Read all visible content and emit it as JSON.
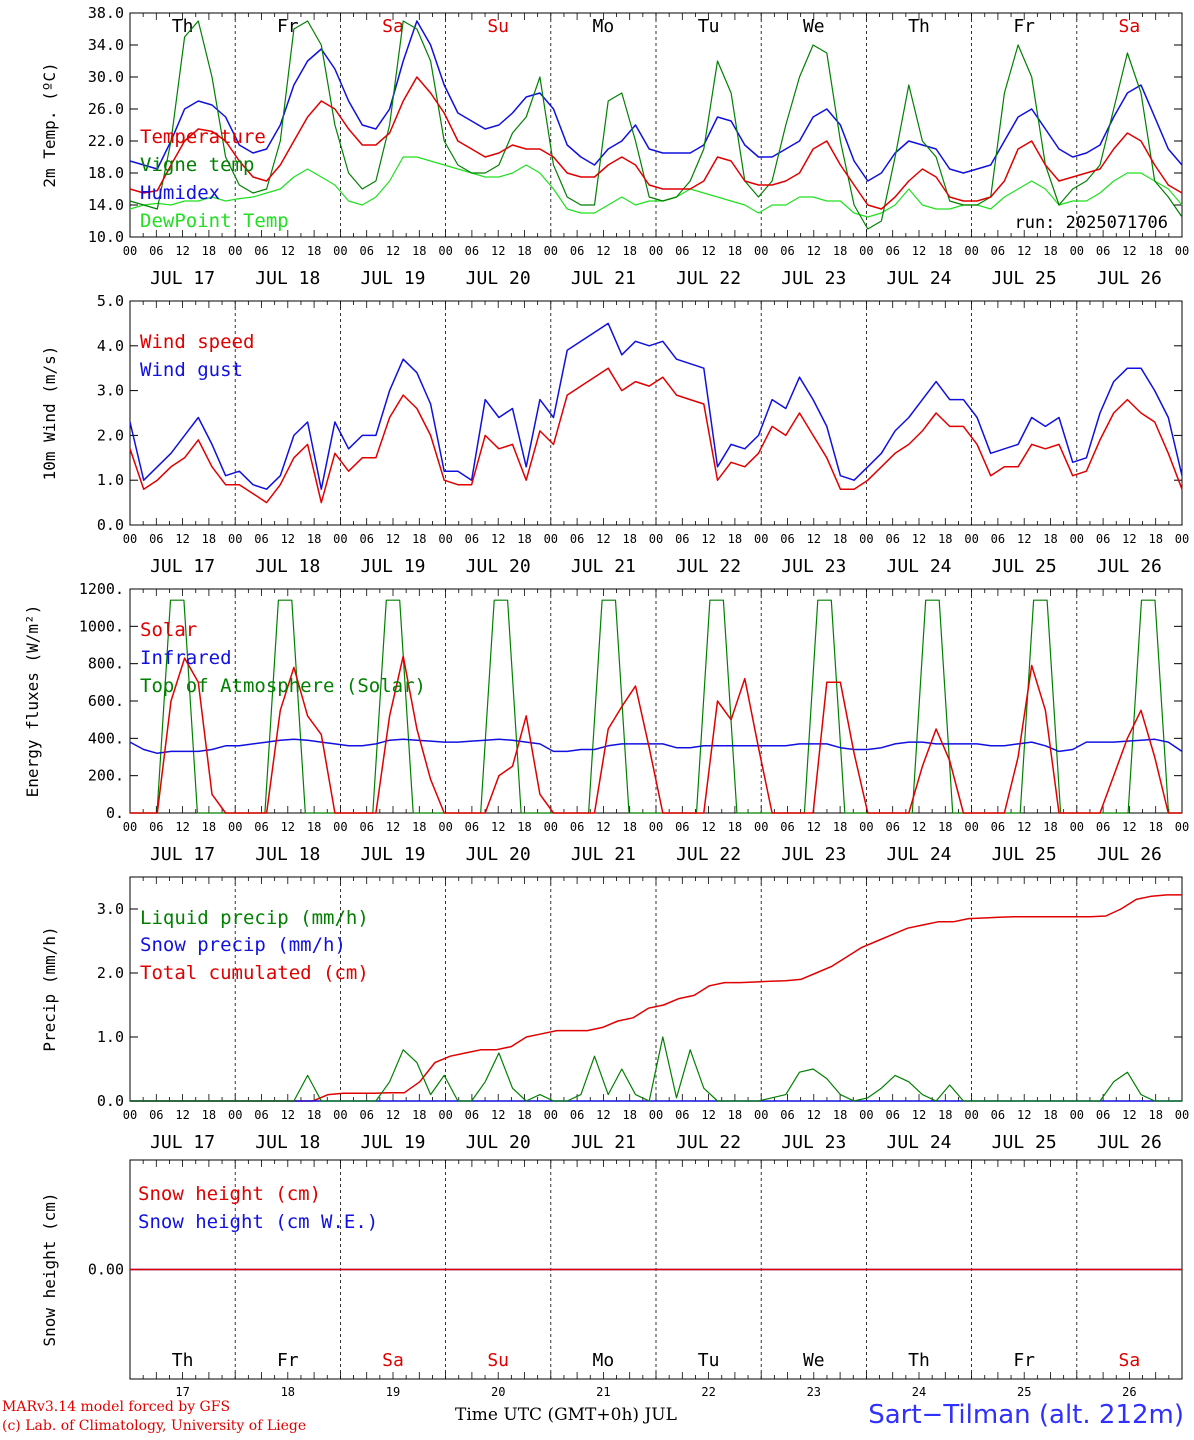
{
  "run_label": "run: 2025071706",
  "days": [
    "Th",
    "Fr",
    "Sa",
    "Su",
    "Mo",
    "Tu",
    "We",
    "Th",
    "Fr",
    "Sa"
  ],
  "weekend_flags": [
    false,
    false,
    true,
    true,
    false,
    false,
    false,
    false,
    false,
    true
  ],
  "date_labels": [
    "JUL 17",
    "JUL 18",
    "JUL 19",
    "JUL 20",
    "JUL 21",
    "JUL 22",
    "JUL 23",
    "JUL 24",
    "JUL 25",
    "JUL 26"
  ],
  "day_numbers": [
    "17",
    "18",
    "19",
    "20",
    "21",
    "22",
    "23",
    "24",
    "25",
    "26"
  ],
  "hour_ticks": [
    "00",
    "06",
    "12",
    "18"
  ],
  "footer": {
    "model_line": "MARv3.14 model forced by GFS",
    "credit_line": "(c) Lab. of Climatology, University of Liege",
    "xaxis_label": "Time UTC (GMT+0h) JUL",
    "station": "Sart−Tilman (alt. 212m)"
  },
  "colors": {
    "red": "#e00000",
    "green": "#008000",
    "blue": "#1010e0",
    "lightgreen": "#20e020",
    "grid": "#000000"
  },
  "chart_data": [
    {
      "type": "line",
      "ylabel": "2m Temp. (ºC)",
      "yticks": [
        "10.0",
        "14.0",
        "18.0",
        "22.0",
        "26.0",
        "30.0",
        "34.0",
        "38.0"
      ],
      "ylim": [
        10,
        38
      ],
      "x_hours": 240,
      "series": [
        {
          "name": "Temperature",
          "color": "red",
          "values": [
            16,
            15.5,
            15.8,
            19,
            22,
            23.5,
            23.2,
            22,
            19.5,
            17.5,
            17,
            19,
            22,
            25,
            27,
            26,
            23.5,
            21.5,
            21.5,
            23,
            27,
            30,
            28,
            25.5,
            22,
            21,
            20,
            20.5,
            21.5,
            21,
            21,
            20,
            18,
            17.5,
            17.5,
            19,
            20,
            19,
            16.5,
            16,
            16,
            16,
            17,
            20,
            19.5,
            17,
            16.5,
            16.5,
            17,
            18,
            21,
            22,
            19,
            16.5,
            14,
            13.5,
            15,
            17,
            18.5,
            17.5,
            15,
            14.5,
            14.5,
            15,
            17,
            21,
            22,
            19,
            17,
            17.5,
            18,
            18.5,
            21,
            23,
            22,
            19,
            16.5,
            15.5
          ]
        },
        {
          "name": "Vigne temp",
          "color": "green",
          "values": [
            14.5,
            14,
            13.5,
            22,
            35,
            37,
            30,
            20,
            16.5,
            15.5,
            16,
            22,
            36,
            37,
            34,
            24,
            18,
            16,
            17,
            24,
            37,
            36,
            32,
            22,
            19,
            18,
            18,
            19,
            23,
            25,
            30,
            19,
            15,
            14,
            14,
            27,
            28,
            22,
            15,
            14.5,
            15,
            17,
            21,
            32,
            28,
            17,
            15,
            17,
            24,
            30,
            34,
            33,
            22,
            14,
            11,
            12,
            20,
            29,
            22,
            20,
            14.5,
            14,
            14,
            15,
            28,
            34,
            30,
            19,
            14,
            16,
            17,
            19,
            26,
            33,
            28,
            17,
            15,
            12.5
          ]
        },
        {
          "name": "Humidex",
          "color": "blue",
          "values": [
            19.5,
            19,
            18.5,
            22,
            26,
            27,
            26.5,
            25,
            21.5,
            20.5,
            21,
            24,
            29,
            32,
            33.5,
            31,
            27,
            24,
            23.5,
            26,
            32,
            37,
            34,
            29,
            25.5,
            24.5,
            23.5,
            24,
            25.5,
            27.5,
            28,
            26,
            21.5,
            20,
            19,
            21,
            22,
            24,
            21,
            20.5,
            20.5,
            20.5,
            21.5,
            25,
            24.5,
            21.5,
            20,
            20,
            21,
            22,
            25,
            26,
            24,
            19.5,
            17,
            18,
            20.5,
            22,
            21.5,
            21,
            18.5,
            18,
            18.5,
            19,
            22,
            25,
            26,
            23.5,
            21,
            20,
            20.5,
            21.5,
            25,
            28,
            29,
            25,
            21,
            19
          ]
        },
        {
          "name": "DewPoint Temp",
          "color": "lightgreen",
          "values": [
            13.5,
            14,
            14.2,
            14,
            14.5,
            14.5,
            15,
            14.5,
            14.8,
            15,
            15.5,
            16,
            17.5,
            18.5,
            17.5,
            16.5,
            14.5,
            14,
            15,
            17,
            20,
            20,
            19.5,
            19,
            18.5,
            18,
            17.5,
            17.5,
            18,
            19,
            18,
            16,
            13.5,
            13,
            13,
            14,
            15,
            14,
            14.5,
            14.5,
            15,
            16,
            15.5,
            15,
            14.5,
            14,
            13,
            14,
            14,
            15,
            15,
            14.5,
            14.5,
            13,
            12.5,
            13,
            14,
            16,
            14,
            13.5,
            13.5,
            14,
            14,
            13.5,
            15,
            16,
            17,
            16,
            14,
            14.5,
            14.5,
            15.5,
            17,
            18,
            18,
            17,
            16,
            14
          ]
        }
      ]
    },
    {
      "type": "line",
      "ylabel": "10m Wind (m/s)",
      "yticks": [
        "0.0",
        "1.0",
        "2.0",
        "3.0",
        "4.0",
        "5.0"
      ],
      "ylim": [
        0,
        5
      ],
      "x_hours": 240,
      "series": [
        {
          "name": "Wind speed",
          "color": "red",
          "values": [
            1.7,
            0.8,
            1.0,
            1.3,
            1.5,
            1.9,
            1.3,
            0.9,
            0.9,
            0.7,
            0.5,
            0.9,
            1.5,
            1.8,
            0.5,
            1.6,
            1.2,
            1.5,
            1.5,
            2.4,
            2.9,
            2.6,
            2.0,
            1.0,
            0.9,
            0.9,
            2.0,
            1.7,
            1.8,
            1.0,
            2.1,
            1.8,
            2.9,
            3.1,
            3.3,
            3.5,
            3.0,
            3.2,
            3.1,
            3.3,
            2.9,
            2.8,
            2.7,
            1.0,
            1.4,
            1.3,
            1.6,
            2.2,
            2.0,
            2.5,
            2.0,
            1.5,
            0.8,
            0.8,
            1.0,
            1.3,
            1.6,
            1.8,
            2.1,
            2.5,
            2.2,
            2.2,
            1.8,
            1.1,
            1.3,
            1.3,
            1.8,
            1.7,
            1.8,
            1.1,
            1.2,
            1.9,
            2.5,
            2.8,
            2.5,
            2.3,
            1.6,
            0.8
          ]
        },
        {
          "name": "Wind gust",
          "color": "blue",
          "values": [
            2.3,
            1.0,
            1.3,
            1.6,
            2.0,
            2.4,
            1.8,
            1.1,
            1.2,
            0.9,
            0.8,
            1.1,
            2.0,
            2.3,
            0.8,
            2.3,
            1.7,
            2.0,
            2.0,
            3.0,
            3.7,
            3.4,
            2.7,
            1.2,
            1.2,
            1.0,
            2.8,
            2.4,
            2.6,
            1.3,
            2.8,
            2.4,
            3.9,
            4.1,
            4.3,
            4.5,
            3.8,
            4.1,
            4.0,
            4.1,
            3.7,
            3.6,
            3.5,
            1.3,
            1.8,
            1.7,
            2.0,
            2.8,
            2.6,
            3.3,
            2.8,
            2.2,
            1.1,
            1.0,
            1.3,
            1.6,
            2.1,
            2.4,
            2.8,
            3.2,
            2.8,
            2.8,
            2.4,
            1.6,
            1.7,
            1.8,
            2.4,
            2.2,
            2.4,
            1.4,
            1.5,
            2.5,
            3.2,
            3.5,
            3.5,
            3.0,
            2.4,
            1.1
          ]
        }
      ]
    },
    {
      "type": "line",
      "ylabel": "Energy fluxes (W/m²)",
      "yticks": [
        "0.",
        "200.",
        "400.",
        "600.",
        "800.",
        "1000.",
        "1200."
      ],
      "ylim": [
        0,
        1200
      ],
      "x_hours": 240,
      "series": [
        {
          "name": "Solar",
          "color": "red",
          "values": [
            0,
            0,
            0,
            600,
            830,
            700,
            100,
            0,
            0,
            0,
            0,
            550,
            780,
            520,
            420,
            0,
            0,
            0,
            0,
            520,
            840,
            450,
            180,
            0,
            0,
            0,
            0,
            200,
            250,
            520,
            100,
            0,
            0,
            0,
            0,
            450,
            570,
            680,
            350,
            0,
            0,
            0,
            0,
            600,
            500,
            720,
            350,
            0,
            0,
            0,
            0,
            700,
            700,
            320,
            0,
            0,
            0,
            0,
            250,
            450,
            280,
            0,
            0,
            0,
            0,
            300,
            790,
            550,
            0,
            0,
            0,
            0,
            200,
            400,
            550,
            300,
            0,
            0
          ]
        },
        {
          "name": "Infrared",
          "color": "blue",
          "values": [
            380,
            340,
            320,
            330,
            330,
            330,
            340,
            360,
            360,
            370,
            380,
            390,
            395,
            390,
            380,
            370,
            360,
            360,
            370,
            390,
            395,
            390,
            385,
            380,
            380,
            385,
            390,
            395,
            390,
            380,
            370,
            330,
            330,
            340,
            340,
            360,
            370,
            370,
            370,
            370,
            350,
            350,
            360,
            360,
            360,
            360,
            360,
            360,
            360,
            370,
            370,
            370,
            350,
            340,
            340,
            350,
            370,
            380,
            380,
            370,
            370,
            370,
            370,
            360,
            360,
            370,
            380,
            360,
            330,
            340,
            380,
            380,
            380,
            385,
            390,
            395,
            380,
            330
          ]
        },
        {
          "name": "Top of Atmosphere (Solar)",
          "color": "green",
          "values": [
            0,
            0,
            0,
            1140,
            1140,
            0,
            0,
            0,
            0,
            0,
            0,
            1140,
            1140,
            0,
            0,
            0,
            0,
            0,
            0,
            1140,
            1140,
            0,
            0,
            0,
            0,
            0,
            0,
            1140,
            1140,
            0,
            0,
            0,
            0,
            0,
            0,
            1140,
            1140,
            0,
            0,
            0,
            0,
            0,
            0,
            1140,
            1140,
            0,
            0,
            0,
            0,
            0,
            0,
            1140,
            1140,
            0,
            0,
            0,
            0,
            0,
            0,
            1140,
            1140,
            0,
            0,
            0,
            0,
            0,
            0,
            1140,
            1140,
            0,
            0,
            0,
            0,
            0,
            0,
            1140,
            1140,
            0,
            0
          ]
        }
      ]
    },
    {
      "type": "line",
      "ylabel": "Precip (mm/h)",
      "yticks": [
        "0.0",
        "1.0",
        "2.0",
        "3.0"
      ],
      "ylim": [
        0,
        3.5
      ],
      "x_hours": 240,
      "series": [
        {
          "name": "Liquid precip (mm/h)",
          "color": "green",
          "values": [
            0,
            0,
            0,
            0,
            0,
            0,
            0,
            0,
            0,
            0,
            0,
            0,
            0,
            0.4,
            0,
            0,
            0,
            0,
            0,
            0.3,
            0.8,
            0.6,
            0.1,
            0.4,
            0,
            0,
            0.3,
            0.75,
            0.2,
            0,
            0.1,
            0,
            0,
            0.1,
            0.7,
            0.1,
            0.5,
            0.1,
            0,
            1.0,
            0.05,
            0.8,
            0.2,
            0,
            0,
            0,
            0,
            0.05,
            0.1,
            0.45,
            0.5,
            0.35,
            0.1,
            0,
            0.05,
            0.2,
            0.4,
            0.3,
            0.1,
            0,
            0.25,
            0,
            0,
            0,
            0,
            0,
            0,
            0,
            0,
            0,
            0,
            0,
            0.3,
            0.45,
            0.1,
            0,
            0,
            0
          ]
        },
        {
          "name": "Snow precip (mm/h)",
          "color": "blue",
          "values": [
            0,
            0,
            0,
            0,
            0,
            0,
            0,
            0,
            0,
            0,
            0,
            0,
            0,
            0,
            0,
            0,
            0,
            0,
            0,
            0,
            0,
            0,
            0,
            0,
            0,
            0,
            0,
            0,
            0,
            0,
            0,
            0,
            0,
            0,
            0,
            0,
            0,
            0,
            0,
            0,
            0,
            0,
            0,
            0,
            0,
            0,
            0,
            0,
            0,
            0,
            0,
            0,
            0,
            0,
            0,
            0,
            0,
            0,
            0,
            0,
            0,
            0,
            0,
            0,
            0,
            0,
            0,
            0,
            0,
            0,
            0,
            0,
            0,
            0,
            0,
            0,
            0,
            0
          ]
        },
        {
          "name": "Total cumulated (cm)",
          "color": "red",
          "values": [
            0,
            0,
            0,
            0,
            0,
            0,
            0,
            0,
            0,
            0,
            0,
            0,
            0,
            0.1,
            0.12,
            0.12,
            0.12,
            0.13,
            0.13,
            0.3,
            0.6,
            0.7,
            0.75,
            0.8,
            0.8,
            0.85,
            1.0,
            1.05,
            1.1,
            1.1,
            1.1,
            1.15,
            1.25,
            1.3,
            1.45,
            1.5,
            1.6,
            1.65,
            1.8,
            1.85,
            1.85,
            1.86,
            1.87,
            1.88,
            1.9,
            2.0,
            2.1,
            2.25,
            2.4,
            2.5,
            2.6,
            2.7,
            2.75,
            2.8,
            2.8,
            2.85,
            2.86,
            2.87,
            2.88,
            2.88,
            2.88,
            2.88,
            2.88,
            2.88,
            2.89,
            3.0,
            3.15,
            3.2,
            3.22,
            3.22
          ]
        }
      ]
    },
    {
      "type": "line",
      "ylabel": "Snow height (cm)",
      "yticks": [
        "0.00"
      ],
      "ylim": [
        -1,
        1
      ],
      "x_hours": 240,
      "series": [
        {
          "name": "Snow height (cm)",
          "color": "red",
          "values": [
            0,
            0
          ]
        },
        {
          "name": "Snow height (cm W.E.)",
          "color": "blue",
          "values": [
            0,
            0
          ]
        }
      ]
    }
  ]
}
